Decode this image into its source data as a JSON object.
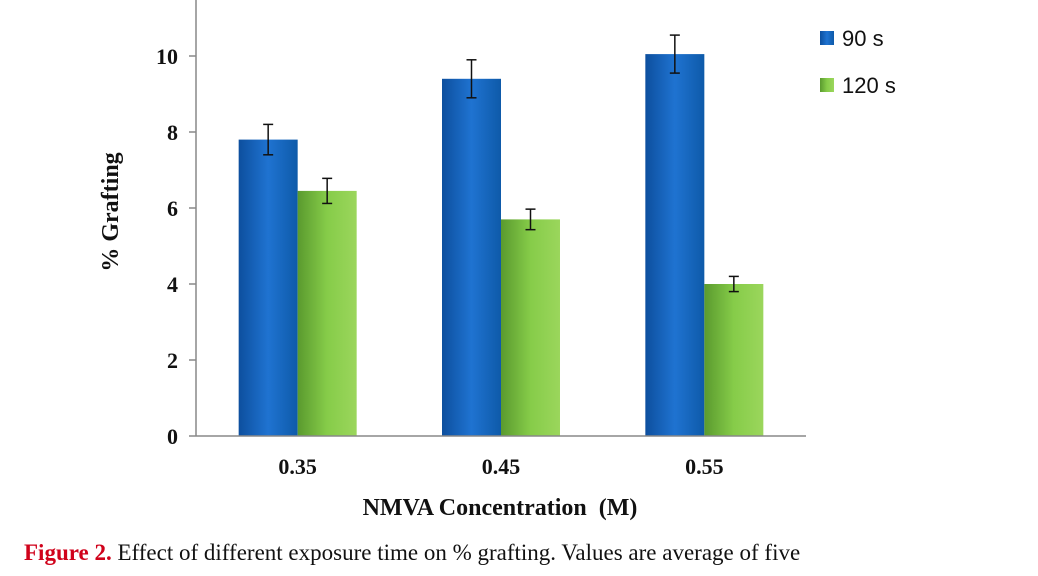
{
  "chart_data": {
    "type": "bar",
    "categories": [
      "0.35",
      "0.45",
      "0.55"
    ],
    "series": [
      {
        "name": "90 s",
        "values": [
          7.8,
          9.4,
          10.05
        ],
        "errors": [
          0.4,
          0.5,
          0.5
        ],
        "color": "#1565c0"
      },
      {
        "name": "120 s",
        "values": [
          6.45,
          5.7,
          4.0
        ],
        "errors": [
          0.33,
          0.27,
          0.2
        ],
        "color": "#7cc242"
      }
    ],
    "ylim": [
      0,
      11
    ],
    "yticks": [
      "0",
      "2",
      "4",
      "6",
      "8",
      "10"
    ],
    "ylabel": "% Grafting",
    "xlabel": "NMVA Concentration  (M)",
    "legend": "top-right"
  },
  "caption": {
    "label": "Figure 2.",
    "text": " Effect of different exposure time on % grafting. Values are average of five"
  }
}
